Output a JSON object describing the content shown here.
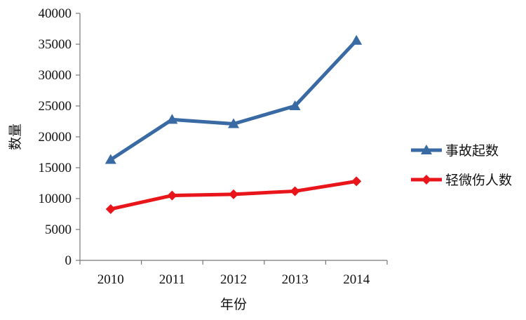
{
  "chart_data": {
    "type": "line",
    "title": "",
    "xlabel": "年份",
    "ylabel": "数量",
    "categories": [
      "2010",
      "2011",
      "2012",
      "2013",
      "2014"
    ],
    "ylim": [
      0,
      40000
    ],
    "yticks": [
      0,
      5000,
      10000,
      15000,
      20000,
      25000,
      30000,
      35000,
      40000
    ],
    "grid": false,
    "legend_position": "right",
    "series": [
      {
        "name": "事故起数",
        "values": [
          16300,
          22800,
          22100,
          25000,
          35600
        ],
        "color": "#3a6aa3",
        "marker": "triangle"
      },
      {
        "name": "轻微伤人数",
        "values": [
          8300,
          10500,
          10700,
          11200,
          12800
        ],
        "color": "#e8151b",
        "marker": "diamond"
      }
    ]
  }
}
